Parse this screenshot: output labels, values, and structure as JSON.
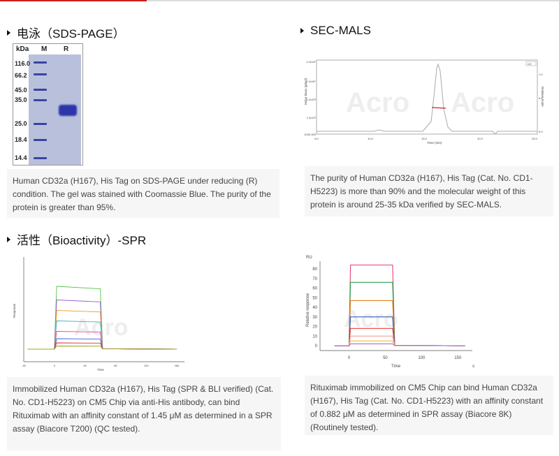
{
  "colors": {
    "accent": "#c81e1e",
    "band": "#2e35a8",
    "gel_bg": "#b9c0dc"
  },
  "sections": {
    "sds": {
      "title": "电泳（SDS-PAGE）",
      "gel_headers": {
        "kda": "kDa",
        "m": "M",
        "r": "R"
      },
      "markers": [
        "116.0",
        "66.2",
        "45.0",
        "35.0",
        "25.0",
        "18.4",
        "14.4"
      ],
      "caption": "Human CD32a (H167), His Tag on SDS-PAGE under reducing (R) condition. The gel was stained with Coomassie Blue. The purity of the protein is greater than 95%."
    },
    "sec": {
      "title": "SEC-MALS",
      "chart": {
        "ylabel": "Molar Mass (g/mol)",
        "y2label": "Relative Scale",
        "xlabel": "Time (min)",
        "xticks": [
          "5.0",
          "10.0",
          "15.0",
          "20.0",
          "25.0"
        ],
        "yticks": [
          "1.0x10⁵",
          "1.0x10⁴",
          "1.0x10³",
          "1.0x10²",
          "1000.000"
        ],
        "y2ticks": [
          "1.0",
          "0.5",
          "0.0"
        ],
        "legend": "UV",
        "watermark": "Acro"
      },
      "caption": "The purity of Human CD32a (H167), His Tag (Cat. No. CD1-H5223) is more than 90% and the molecular weight of this protein is around 25-35 kDa verified by SEC-MALS."
    },
    "spr": {
      "title": "活性（Bioactivity）-SPR",
      "chart1": {
        "ylabel": "Response",
        "xlabel": "Time",
        "xticks": [
          "-40",
          "0",
          "40",
          "80",
          "120",
          "160"
        ],
        "watermark": "Acro"
      },
      "caption1": "Immobilized Human CD32a (H167), His Tag (SPR & BLI verified) (Cat. No. CD1-H5223) on CM5 Chip via anti-His antibody, can bind  Rituximab with an affinity constant of 1.45 μM as determined in a SPR assay (Biacore T200) (QC tested).",
      "chart2": {
        "unit": "RU",
        "ylabel": "Relative response",
        "xlabel": "Time",
        "xunit": "s",
        "yticks": [
          "80",
          "70",
          "60",
          "50",
          "40",
          "30",
          "20",
          "10",
          "0"
        ],
        "xticks": [
          "0",
          "50",
          "100",
          "150"
        ],
        "watermark": "Acro"
      },
      "caption2": "Rituximab immobilized on CM5 Chip can bind Human CD32a (H167), His Tag (Cat. No. CD1-H5223) with an affinity constant of 0.882 μM as determined in SPR assay (Biacore 8K) (Routinely tested)."
    }
  },
  "chart_data": [
    {
      "type": "line",
      "ylim": [
        0,
        80
      ],
      "xlim": [
        -40,
        170
      ],
      "series_colors": [
        "#55c447",
        "#9b5fd0",
        "#f0a030",
        "#3bb8c8",
        "#e05090",
        "#4060e0",
        "#e03030",
        "#a0a020"
      ],
      "plateaus": [
        60,
        47,
        37,
        27,
        17,
        10,
        6,
        3
      ]
    },
    {
      "type": "line",
      "ylim": [
        -5,
        88
      ],
      "xlim": [
        -40,
        170
      ],
      "series_colors": [
        "#e8407a",
        "#2aa050",
        "#e88020",
        "#3060c0",
        "#e84040",
        "#f0a0a0",
        "#e0c040",
        "#a060d0"
      ],
      "plateaus": [
        84,
        66,
        47,
        30,
        18,
        10,
        5,
        2
      ]
    }
  ]
}
